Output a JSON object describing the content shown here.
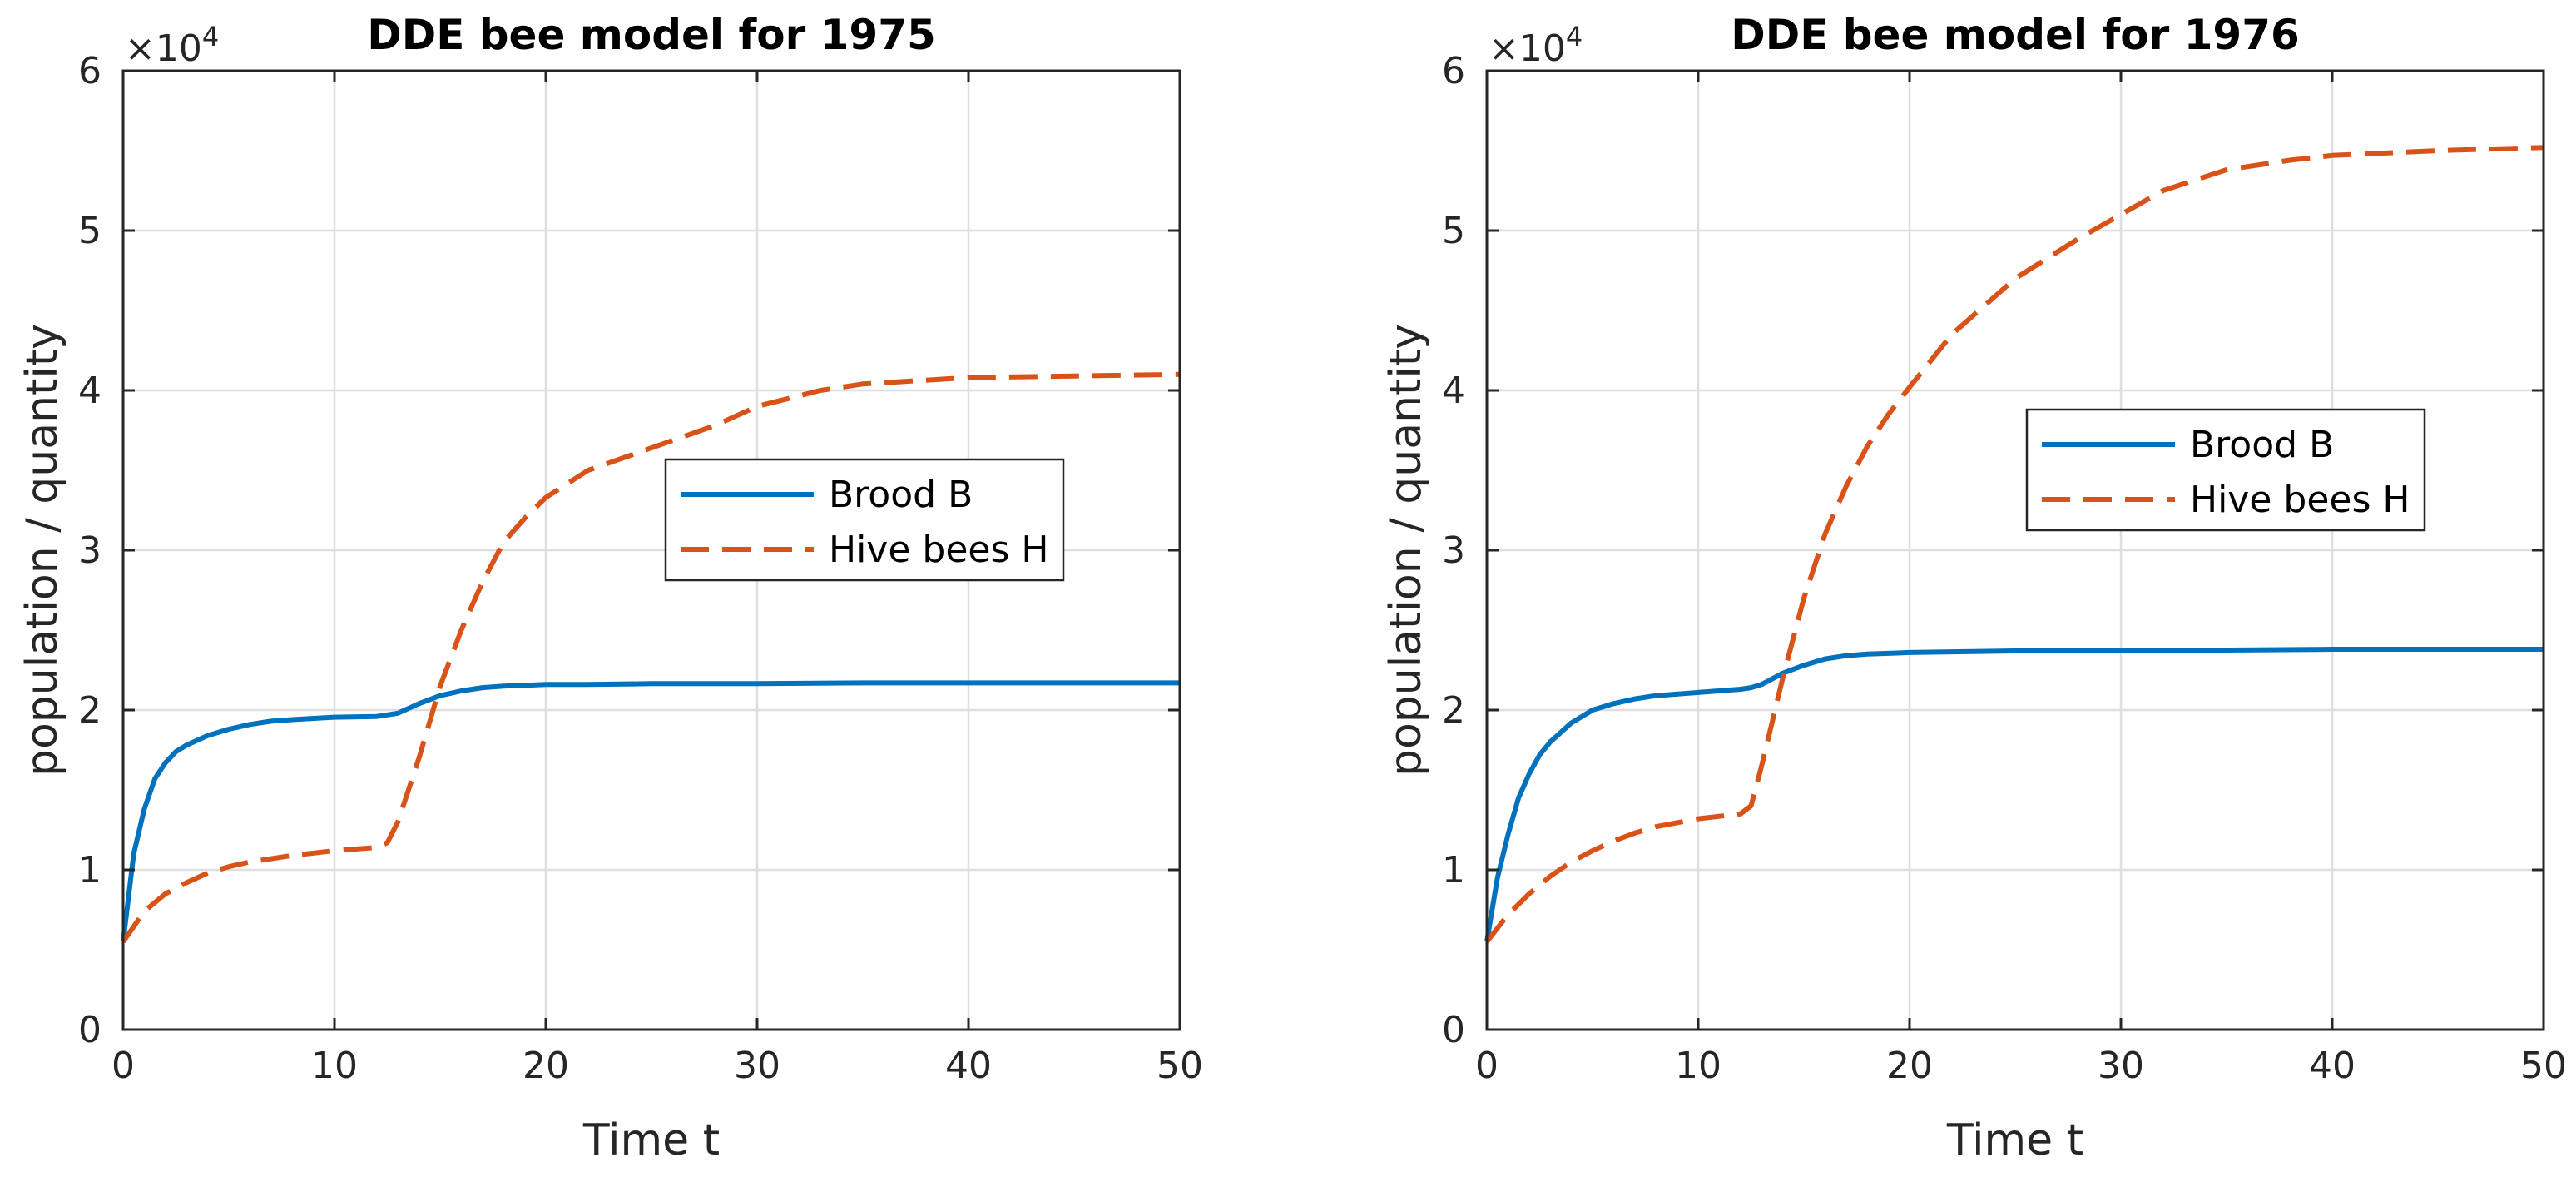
{
  "chart_data": [
    {
      "type": "line",
      "title": "DDE bee model for 1975",
      "xlabel": "Time t",
      "ylabel": "population / quantity",
      "y_exponent_label": "×10",
      "y_exponent_power": "4",
      "xlim": [
        0,
        50
      ],
      "ylim": [
        0,
        6
      ],
      "y_scale": 10000,
      "xticks": [
        0,
        10,
        20,
        30,
        40,
        50
      ],
      "yticks": [
        0,
        1,
        2,
        3,
        4,
        5,
        6
      ],
      "grid": true,
      "legend_position": "center-right",
      "series": [
        {
          "name": "Brood B",
          "style": "solid",
          "color": "#0072BD",
          "x": [
            0,
            0.5,
            1,
            1.5,
            2,
            2.5,
            3,
            4,
            5,
            6,
            7,
            8,
            10,
            12,
            12.5,
            13,
            14,
            15,
            16,
            17,
            18,
            20,
            22,
            25,
            30,
            35,
            40,
            45,
            50
          ],
          "y": [
            0.55,
            1.1,
            1.38,
            1.57,
            1.67,
            1.74,
            1.78,
            1.84,
            1.88,
            1.91,
            1.93,
            1.94,
            1.955,
            1.96,
            1.97,
            1.98,
            2.04,
            2.09,
            2.12,
            2.14,
            2.15,
            2.16,
            2.16,
            2.165,
            2.165,
            2.17,
            2.17,
            2.17,
            2.17
          ]
        },
        {
          "name": "Hive bees H",
          "style": "dashed",
          "color": "#D95319",
          "x": [
            0,
            1,
            2,
            3,
            4,
            5,
            6,
            7,
            8,
            10,
            12,
            12.5,
            13,
            14,
            15,
            16,
            17,
            18,
            19,
            20,
            22,
            25,
            28,
            30,
            33,
            35,
            40,
            45,
            50
          ],
          "y": [
            0.55,
            0.74,
            0.85,
            0.92,
            0.98,
            1.02,
            1.05,
            1.07,
            1.09,
            1.12,
            1.14,
            1.17,
            1.3,
            1.7,
            2.15,
            2.5,
            2.8,
            3.05,
            3.2,
            3.33,
            3.5,
            3.64,
            3.78,
            3.9,
            4.0,
            4.04,
            4.08,
            4.09,
            4.1
          ]
        }
      ]
    },
    {
      "type": "line",
      "title": "DDE bee model for 1976",
      "xlabel": "Time t",
      "ylabel": "population / quantity",
      "y_exponent_label": "×10",
      "y_exponent_power": "4",
      "xlim": [
        0,
        50
      ],
      "ylim": [
        0,
        6
      ],
      "y_scale": 10000,
      "xticks": [
        0,
        10,
        20,
        30,
        40,
        50
      ],
      "yticks": [
        0,
        1,
        2,
        3,
        4,
        5,
        6
      ],
      "grid": true,
      "legend_position": "center-right",
      "series": [
        {
          "name": "Brood B",
          "style": "solid",
          "color": "#0072BD",
          "x": [
            0,
            0.5,
            1,
            1.5,
            2,
            2.5,
            3,
            4,
            5,
            6,
            7,
            8,
            10,
            12,
            12.5,
            13,
            14,
            15,
            16,
            17,
            18,
            20,
            25,
            30,
            35,
            40,
            45,
            50
          ],
          "y": [
            0.55,
            0.95,
            1.22,
            1.45,
            1.6,
            1.72,
            1.8,
            1.92,
            2.0,
            2.04,
            2.07,
            2.09,
            2.11,
            2.13,
            2.14,
            2.16,
            2.23,
            2.28,
            2.32,
            2.34,
            2.35,
            2.36,
            2.37,
            2.37,
            2.375,
            2.38,
            2.38,
            2.38
          ]
        },
        {
          "name": "Hive bees H",
          "style": "dashed",
          "color": "#D95319",
          "x": [
            0,
            1,
            2,
            3,
            4,
            5,
            6,
            7,
            8,
            10,
            12,
            12.5,
            13,
            14,
            15,
            16,
            17,
            18,
            19,
            20,
            22,
            25,
            28,
            30,
            32,
            35,
            38,
            40,
            45,
            50
          ],
          "y": [
            0.55,
            0.72,
            0.85,
            0.96,
            1.05,
            1.12,
            1.18,
            1.23,
            1.27,
            1.32,
            1.35,
            1.4,
            1.65,
            2.2,
            2.7,
            3.1,
            3.4,
            3.65,
            3.85,
            4.02,
            4.35,
            4.7,
            4.95,
            5.1,
            5.25,
            5.38,
            5.44,
            5.47,
            5.5,
            5.52
          ]
        }
      ]
    }
  ]
}
